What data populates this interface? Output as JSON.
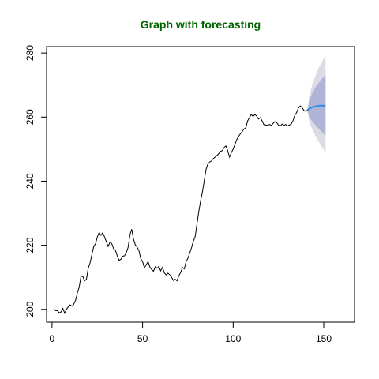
{
  "chart_data": {
    "type": "line",
    "title": "Graph with forecasting",
    "xlabel": "",
    "ylabel": "",
    "xlim": [
      -3,
      167
    ],
    "ylim": [
      196,
      282
    ],
    "x_ticks": [
      0,
      50,
      100,
      150
    ],
    "y_ticks": [
      200,
      220,
      240,
      260,
      280
    ],
    "grid": false,
    "legend": "none",
    "colors": {
      "title": "#006400",
      "series": "#000000",
      "forecast": "#2f8fe0",
      "band_80": "#b0b4d6",
      "band_95": "#dcdce6"
    },
    "series": [
      {
        "values": [
          [
            1,
            200.2
          ],
          [
            2,
            199.6
          ],
          [
            3,
            199.6
          ],
          [
            4,
            198.9
          ],
          [
            5,
            199.2
          ],
          [
            6,
            200.3
          ],
          [
            7,
            198.8
          ],
          [
            8,
            200.0
          ],
          [
            9,
            200.8
          ],
          [
            10,
            201.4
          ],
          [
            11,
            201.0
          ],
          [
            12,
            201.6
          ],
          [
            13,
            202.8
          ],
          [
            14,
            205.2
          ],
          [
            15,
            206.9
          ],
          [
            16,
            210.4
          ],
          [
            17,
            210.2
          ],
          [
            18,
            208.9
          ],
          [
            19,
            209.4
          ],
          [
            20,
            212.9
          ],
          [
            21,
            214.5
          ],
          [
            22,
            217.1
          ],
          [
            23,
            219.5
          ],
          [
            24,
            220.4
          ],
          [
            25,
            222.5
          ],
          [
            26,
            224.0
          ],
          [
            27,
            223.1
          ],
          [
            28,
            223.9
          ],
          [
            29,
            222.6
          ],
          [
            30,
            221.1
          ],
          [
            31,
            219.6
          ],
          [
            32,
            221.0
          ],
          [
            33,
            220.5
          ],
          [
            34,
            218.9
          ],
          [
            35,
            218.4
          ],
          [
            36,
            216.7
          ],
          [
            37,
            215.3
          ],
          [
            38,
            215.6
          ],
          [
            39,
            216.6
          ],
          [
            40,
            216.7
          ],
          [
            41,
            217.6
          ],
          [
            42,
            219.3
          ],
          [
            43,
            223.2
          ],
          [
            44,
            225.0
          ],
          [
            45,
            221.9
          ],
          [
            46,
            220.1
          ],
          [
            47,
            219.4
          ],
          [
            48,
            218.3
          ],
          [
            49,
            215.8
          ],
          [
            50,
            214.9
          ],
          [
            51,
            213.0
          ],
          [
            52,
            213.9
          ],
          [
            53,
            214.9
          ],
          [
            54,
            213.2
          ],
          [
            55,
            212.4
          ],
          [
            56,
            211.9
          ],
          [
            57,
            213.3
          ],
          [
            58,
            212.8
          ],
          [
            59,
            213.4
          ],
          [
            60,
            212.0
          ],
          [
            61,
            213.1
          ],
          [
            62,
            211.4
          ],
          [
            63,
            210.7
          ],
          [
            64,
            211.3
          ],
          [
            65,
            210.8
          ],
          [
            66,
            210.0
          ],
          [
            67,
            209.0
          ],
          [
            68,
            209.4
          ],
          [
            69,
            208.9
          ],
          [
            70,
            210.5
          ],
          [
            71,
            211.5
          ],
          [
            72,
            213.1
          ],
          [
            73,
            212.6
          ],
          [
            74,
            214.8
          ],
          [
            75,
            215.9
          ],
          [
            76,
            217.5
          ],
          [
            77,
            219.2
          ],
          [
            78,
            221.2
          ],
          [
            79,
            222.6
          ],
          [
            80,
            226.5
          ],
          [
            81,
            230.4
          ],
          [
            82,
            233.8
          ],
          [
            83,
            236.5
          ],
          [
            84,
            240.0
          ],
          [
            85,
            243.6
          ],
          [
            86,
            245.3
          ],
          [
            87,
            246.0
          ],
          [
            88,
            246.3
          ],
          [
            89,
            247.0
          ],
          [
            90,
            247.5
          ],
          [
            91,
            248.0
          ],
          [
            92,
            248.5
          ],
          [
            93,
            249.3
          ],
          [
            94,
            249.5
          ],
          [
            95,
            250.5
          ],
          [
            96,
            251.0
          ],
          [
            97,
            249.5
          ],
          [
            98,
            247.5
          ],
          [
            99,
            248.9
          ],
          [
            100,
            250.0
          ],
          [
            101,
            251.5
          ],
          [
            102,
            253.0
          ],
          [
            103,
            254.0
          ],
          [
            104,
            254.8
          ],
          [
            105,
            255.5
          ],
          [
            106,
            256.3
          ],
          [
            107,
            256.7
          ],
          [
            108,
            258.8
          ],
          [
            109,
            259.8
          ],
          [
            110,
            260.8
          ],
          [
            111,
            260.2
          ],
          [
            112,
            260.8
          ],
          [
            113,
            260.3
          ],
          [
            114,
            259.4
          ],
          [
            115,
            259.8
          ],
          [
            116,
            258.8
          ],
          [
            117,
            257.6
          ],
          [
            118,
            257.5
          ],
          [
            119,
            257.4
          ],
          [
            120,
            257.7
          ],
          [
            121,
            257.4
          ],
          [
            122,
            258.0
          ],
          [
            123,
            258.6
          ],
          [
            124,
            258.3
          ],
          [
            125,
            257.5
          ],
          [
            126,
            257.2
          ],
          [
            127,
            257.8
          ],
          [
            128,
            257.4
          ],
          [
            129,
            257.7
          ],
          [
            130,
            257.2
          ],
          [
            131,
            257.5
          ],
          [
            132,
            257.8
          ],
          [
            133,
            258.8
          ],
          [
            134,
            260.5
          ],
          [
            135,
            261.4
          ],
          [
            136,
            262.8
          ],
          [
            137,
            263.5
          ],
          [
            138,
            263.0
          ],
          [
            139,
            262.1
          ],
          [
            140,
            261.8
          ],
          [
            141,
            262.2
          ]
        ]
      }
    ],
    "forecast": {
      "values": [
        [
          141,
          262.2
        ],
        [
          142,
          262.6
        ],
        [
          143,
          262.9
        ],
        [
          144,
          263.1
        ],
        [
          145,
          263.3
        ],
        [
          146,
          263.4
        ],
        [
          147,
          263.5
        ],
        [
          148,
          263.6
        ],
        [
          149,
          263.6
        ],
        [
          150,
          263.6
        ],
        [
          151,
          263.6
        ]
      ],
      "lower80": [
        262.2,
        260.0,
        259.2,
        258.5,
        257.8,
        257.1,
        256.5,
        255.9,
        255.3,
        254.7,
        254.2
      ],
      "upper80": [
        262.2,
        265.2,
        266.6,
        267.7,
        268.8,
        269.7,
        270.5,
        271.3,
        272.0,
        272.6,
        273.1
      ],
      "lower95": [
        262.2,
        258.6,
        257.1,
        255.8,
        254.6,
        253.5,
        252.5,
        251.6,
        250.7,
        249.8,
        249.0
      ],
      "upper95": [
        262.2,
        266.6,
        268.8,
        270.7,
        272.3,
        273.7,
        275.0,
        276.2,
        277.3,
        278.3,
        279.2
      ]
    }
  }
}
